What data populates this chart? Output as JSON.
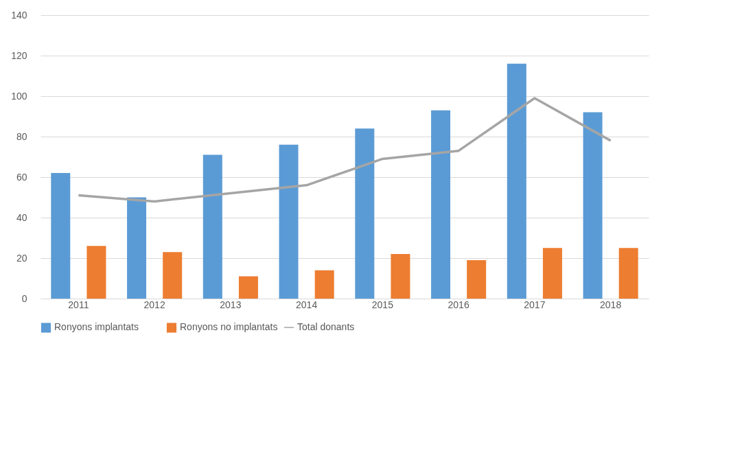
{
  "chart_data": {
    "type": "bar",
    "categories": [
      "2011",
      "2012",
      "2013",
      "2014",
      "2015",
      "2016",
      "2017",
      "2018"
    ],
    "series": [
      {
        "name": "Ronyons implantats",
        "color": "#5b9bd5",
        "values": [
          62,
          50,
          71,
          76,
          84,
          93,
          116,
          92
        ]
      },
      {
        "name": "Ronyons no implantats",
        "color": "#ed7d31",
        "values": [
          26,
          23,
          11,
          14,
          22,
          19,
          25,
          25
        ]
      },
      {
        "name": "Total donants",
        "type": "line",
        "color": "#a5a5a5",
        "values": [
          51,
          48,
          52,
          56,
          69,
          73,
          99,
          78
        ]
      }
    ],
    "ylim": [
      0,
      140
    ],
    "yticks": [
      0,
      20,
      40,
      60,
      80,
      100,
      120,
      140
    ],
    "grid": "y",
    "legend": "bottom"
  }
}
